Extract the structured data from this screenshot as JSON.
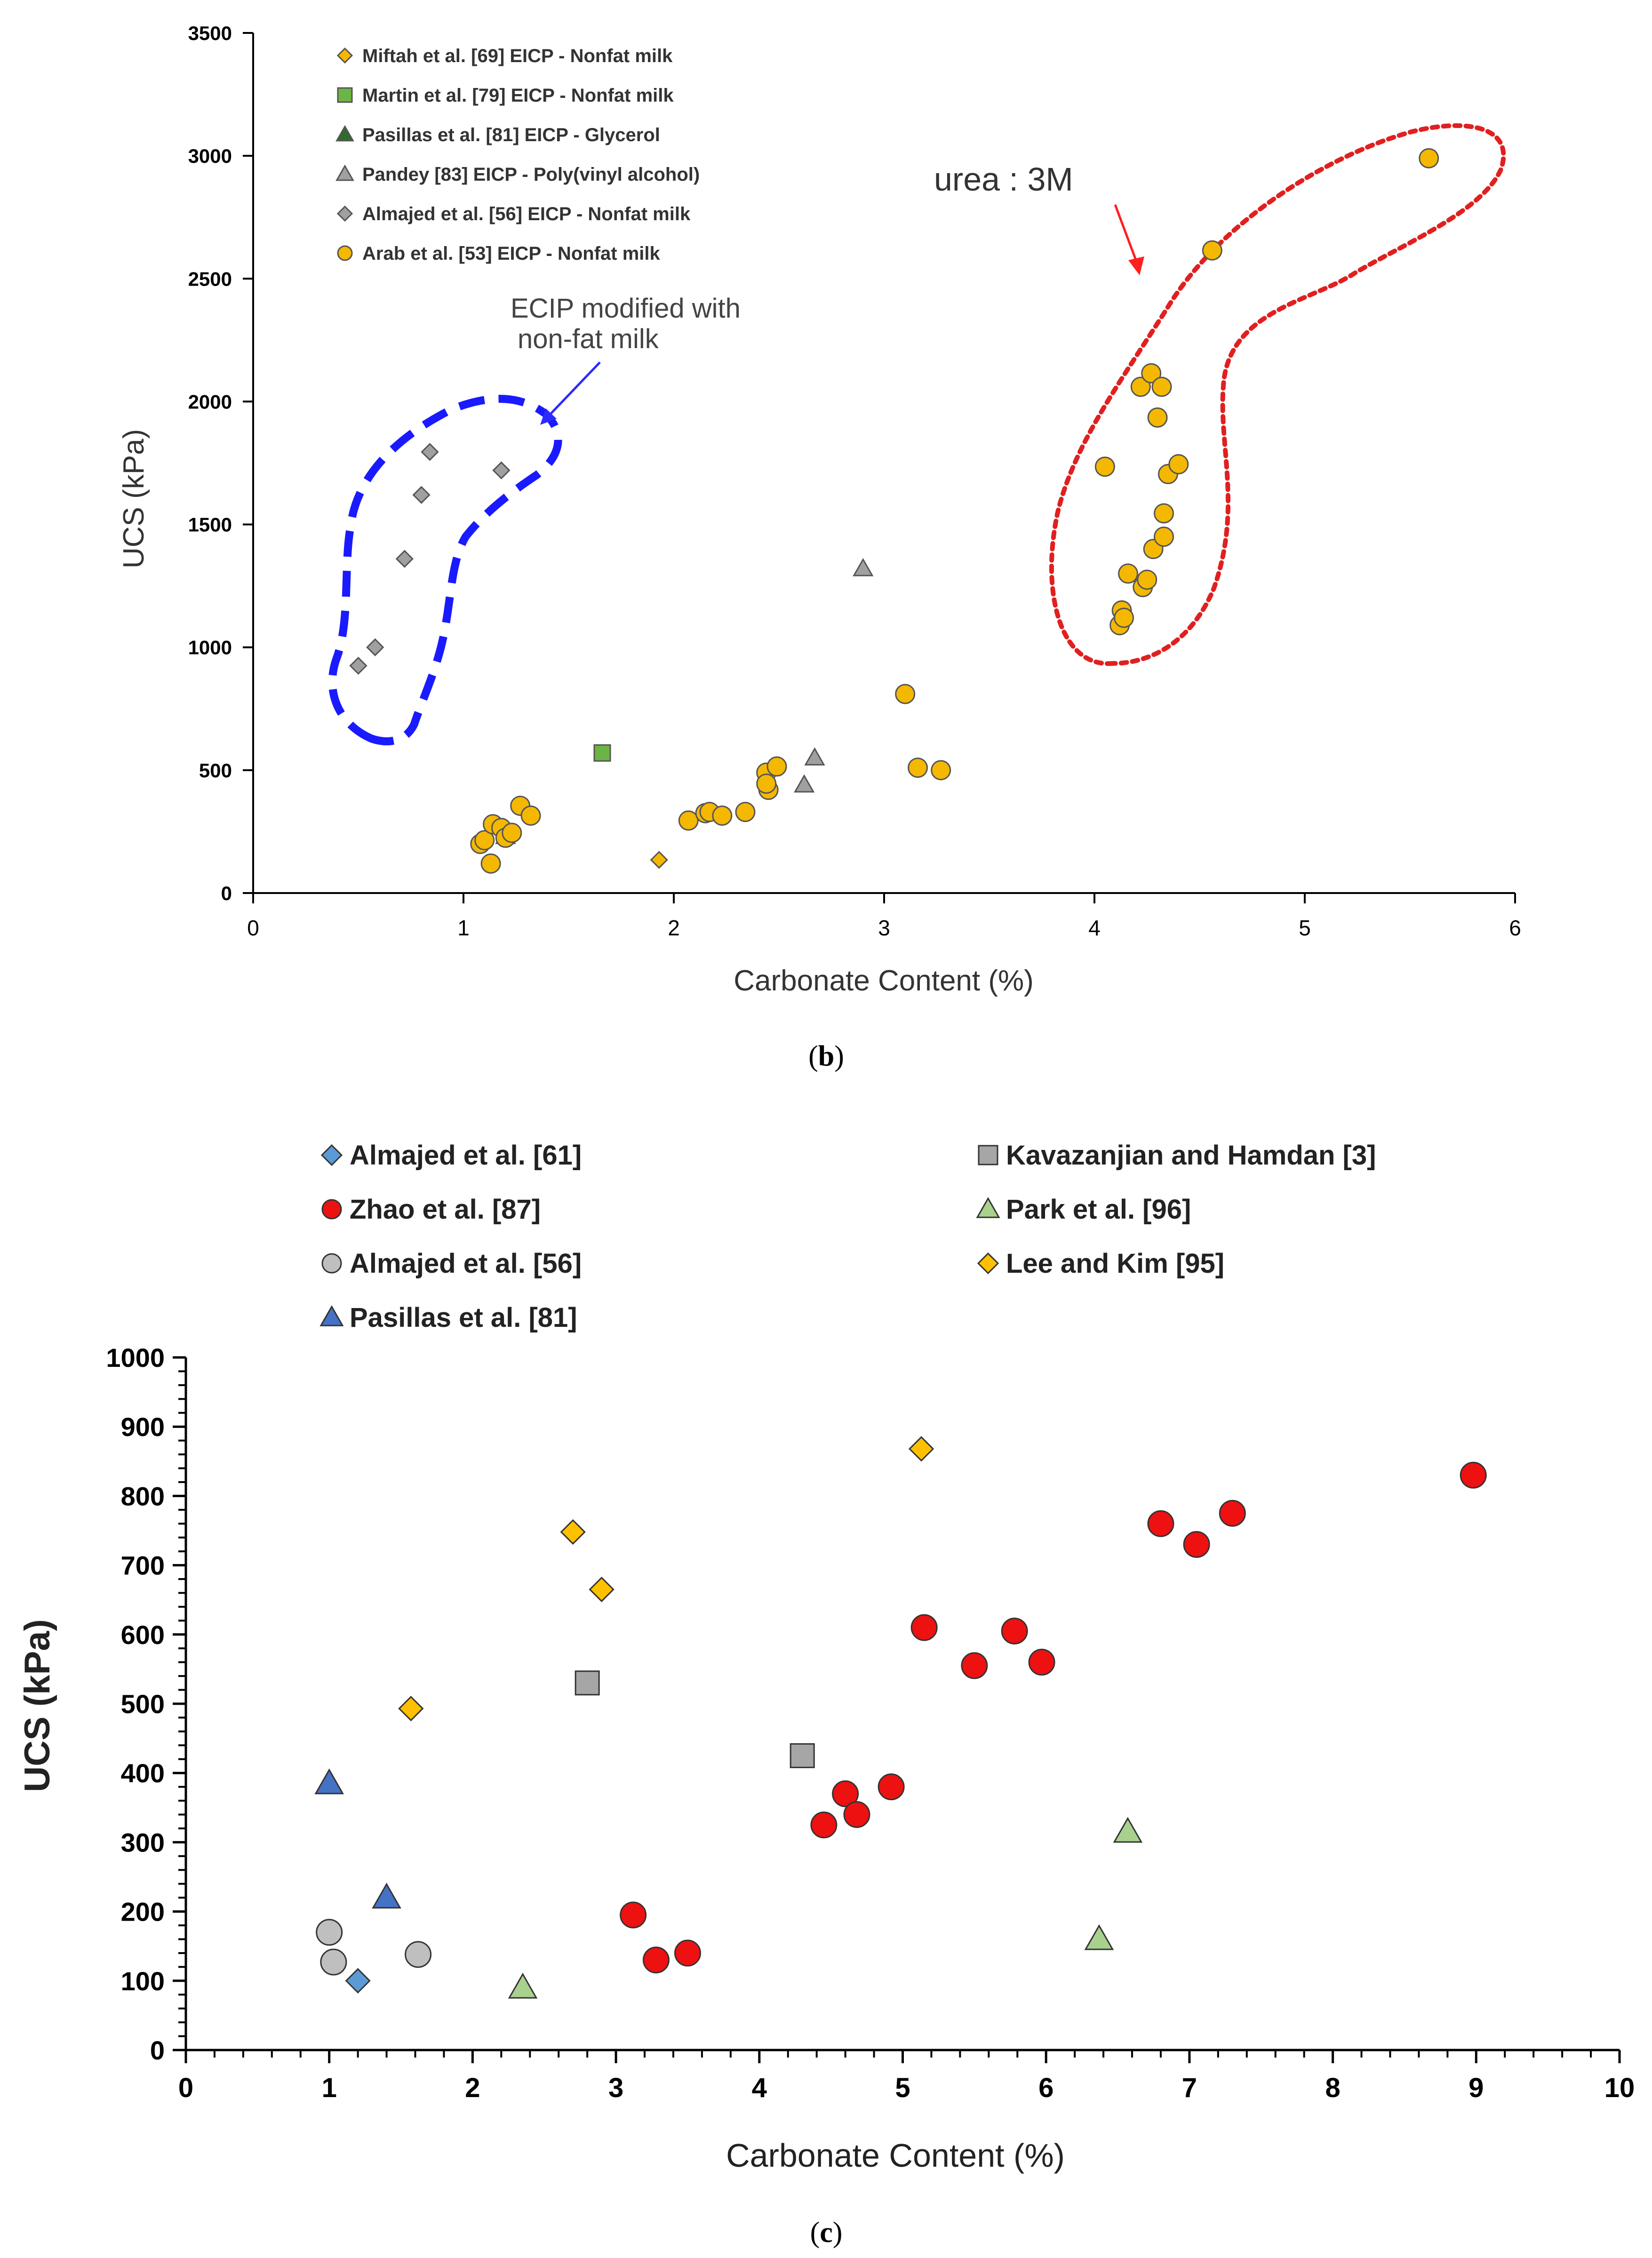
{
  "chart_data": [
    {
      "type": "scatter",
      "panel_caption_left": "(",
      "panel_caption_letter": "b",
      "panel_caption_right": ")",
      "xlabel": "Carbonate Content (%)",
      "ylabel": "UCS (kPa)",
      "xlim": [
        0,
        6
      ],
      "ylim": [
        0,
        3500
      ],
      "xticks": [
        "0",
        "1",
        "2",
        "3",
        "4",
        "5",
        "6"
      ],
      "yticks": [
        "0",
        "500",
        "1000",
        "1500",
        "2000",
        "2500",
        "3000",
        "3500"
      ],
      "legend_position": "top-left",
      "grid": false,
      "series": [
        {
          "name": "Miftah et al. [69] EICP - Nonfat milk",
          "marker": "diamond",
          "color": "#f5b800",
          "points": [
            [
              1.93,
              135
            ]
          ]
        },
        {
          "name": "Martin et al. [79] EICP - Nonfat milk",
          "marker": "square",
          "color": "#6bb545",
          "points": [
            [
              1.66,
              570
            ]
          ]
        },
        {
          "name": "Pasillas et al. [81] EICP - Glycerol",
          "marker": "triangle",
          "color": "#2e6b2e",
          "points": [
            [
              1.2,
              230
            ]
          ]
        },
        {
          "name": "Pandey [83] EICP - Poly(vinyl alcohol)",
          "marker": "triangle",
          "color": "#a0a0a0",
          "points": [
            [
              2.62,
              440
            ],
            [
              2.67,
              550
            ],
            [
              2.9,
              1320
            ]
          ]
        },
        {
          "name": "Almajed et al. [56] EICP - Nonfat milk",
          "marker": "diamond",
          "color": "#a0a0a0",
          "points": [
            [
              0.5,
              925
            ],
            [
              0.58,
              1000
            ],
            [
              0.72,
              1360
            ],
            [
              0.8,
              1620
            ],
            [
              0.84,
              1795
            ],
            [
              1.18,
              1720
            ]
          ]
        },
        {
          "name": "Arab et al. [53] EICP - Nonfat milk",
          "marker": "circle",
          "color": "#f5b800",
          "points": [
            [
              1.08,
              200
            ],
            [
              1.1,
              215
            ],
            [
              1.13,
              120
            ],
            [
              1.14,
              280
            ],
            [
              1.18,
              265
            ],
            [
              1.2,
              225
            ],
            [
              1.23,
              245
            ],
            [
              1.27,
              355
            ],
            [
              1.32,
              315
            ],
            [
              2.07,
              295
            ],
            [
              2.15,
              325
            ],
            [
              2.17,
              330
            ],
            [
              2.23,
              315
            ],
            [
              2.34,
              330
            ],
            [
              2.44,
              490
            ],
            [
              2.45,
              420
            ],
            [
              2.44,
              445
            ],
            [
              2.49,
              515
            ],
            [
              3.1,
              810
            ],
            [
              3.16,
              510
            ],
            [
              3.27,
              500
            ],
            [
              4.05,
              1735
            ],
            [
              4.12,
              1090
            ],
            [
              4.13,
              1150
            ],
            [
              4.14,
              1120
            ],
            [
              4.16,
              1300
            ],
            [
              4.22,
              2060
            ],
            [
              4.23,
              1245
            ],
            [
              4.25,
              1275
            ],
            [
              4.27,
              2115
            ],
            [
              4.28,
              1400
            ],
            [
              4.3,
              1935
            ],
            [
              4.32,
              2060
            ],
            [
              4.33,
              1545
            ],
            [
              4.33,
              1450
            ],
            [
              4.35,
              1705
            ],
            [
              4.4,
              1745
            ],
            [
              4.56,
              2615
            ],
            [
              5.59,
              2990
            ]
          ]
        }
      ],
      "annotations": [
        {
          "text": "urea : 3M",
          "color": "#e02020",
          "outline": "dotted"
        },
        {
          "text_line1": "ECIP modified with",
          "text_line2": "non-fat milk",
          "color": "#1a1aff",
          "outline": "dashed"
        }
      ]
    },
    {
      "type": "scatter",
      "panel_caption_left": "(",
      "panel_caption_letter": "c",
      "panel_caption_right": ")",
      "xlabel": "Carbonate Content (%)",
      "ylabel": "UCS (kPa)",
      "xlim": [
        0,
        10
      ],
      "ylim": [
        0,
        1000
      ],
      "xticks": [
        "0",
        "1",
        "2",
        "3",
        "4",
        "5",
        "6",
        "7",
        "8",
        "9",
        "10"
      ],
      "yticks": [
        "0",
        "100",
        "200",
        "300",
        "400",
        "500",
        "600",
        "700",
        "800",
        "900",
        "1000"
      ],
      "legend_position": "top",
      "grid": false,
      "series": [
        {
          "name": "Almajed et al. [61]",
          "marker": "diamond",
          "color": "#5b9bd5",
          "points": [
            [
              1.2,
              100
            ]
          ]
        },
        {
          "name": "Kavazanjian and Hamdan [3]",
          "marker": "square",
          "color": "#a6a6a6",
          "points": [
            [
              2.8,
              530
            ],
            [
              4.3,
              425
            ]
          ]
        },
        {
          "name": "Zhao et al. [87]",
          "marker": "circle",
          "color": "#ee1111",
          "points": [
            [
              3.12,
              195
            ],
            [
              3.28,
              130
            ],
            [
              3.5,
              140
            ],
            [
              4.45,
              325
            ],
            [
              4.6,
              370
            ],
            [
              4.68,
              340
            ],
            [
              4.92,
              380
            ],
            [
              5.15,
              610
            ],
            [
              5.5,
              555
            ],
            [
              5.78,
              605
            ],
            [
              5.97,
              560
            ],
            [
              6.8,
              760
            ],
            [
              7.05,
              730
            ],
            [
              7.3,
              775
            ],
            [
              8.98,
              830
            ]
          ]
        },
        {
          "name": "Park et al. [96]",
          "marker": "triangle",
          "color": "#a9d18e",
          "points": [
            [
              2.35,
              90
            ],
            [
              6.37,
              160
            ],
            [
              6.57,
              315
            ]
          ]
        },
        {
          "name": "Almajed et al. [56]",
          "marker": "circle",
          "color": "#bfbfbf",
          "points": [
            [
              1.0,
              170
            ],
            [
              1.03,
              127
            ],
            [
              1.62,
              138
            ]
          ]
        },
        {
          "name": "Lee and Kim [95]",
          "marker": "diamond",
          "color": "#ffc000",
          "points": [
            [
              1.57,
              493
            ],
            [
              2.7,
              748
            ],
            [
              2.9,
              665
            ],
            [
              5.13,
              868
            ]
          ]
        },
        {
          "name": "Pasillas et al. [81]",
          "marker": "triangle",
          "color": "#4472c4",
          "points": [
            [
              1.0,
              385
            ],
            [
              1.4,
              220
            ]
          ]
        }
      ]
    }
  ]
}
